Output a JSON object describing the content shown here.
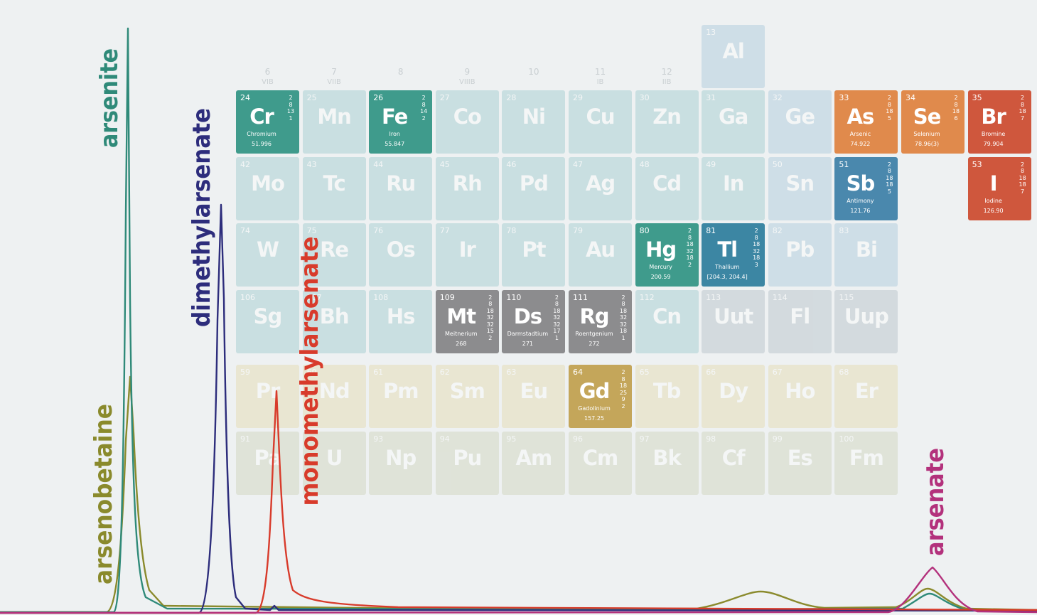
{
  "group_numbers": [
    6,
    7,
    8,
    9,
    10,
    11,
    12
  ],
  "group_romans": [
    "VIB",
    "VIIB",
    "VIIIB",
    "IB",
    "IIB"
  ],
  "tiles": [
    {
      "number": 13,
      "symbol": "Al"
    },
    {
      "number": 24,
      "symbol": "Cr",
      "name": "Chromium",
      "mass": "51.996",
      "shells": [
        2,
        8,
        13,
        1
      ]
    },
    {
      "number": 25,
      "symbol": "Mn"
    },
    {
      "number": 26,
      "symbol": "Fe",
      "name": "Iron",
      "mass": "55.847",
      "shells": [
        2,
        8,
        14,
        2
      ]
    },
    {
      "number": 27,
      "symbol": "Co"
    },
    {
      "number": 28,
      "symbol": "Ni"
    },
    {
      "number": 29,
      "symbol": "Cu"
    },
    {
      "number": 30,
      "symbol": "Zn"
    },
    {
      "number": 31,
      "symbol": "Ga"
    },
    {
      "number": 32,
      "symbol": "Ge"
    },
    {
      "number": 33,
      "symbol": "As",
      "name": "Arsenic",
      "mass": "74.922",
      "shells": [
        2,
        8,
        18,
        5
      ]
    },
    {
      "number": 34,
      "symbol": "Se",
      "name": "Selenium",
      "mass": "78.96(3)",
      "shells": [
        2,
        8,
        18,
        6
      ]
    },
    {
      "number": 35,
      "symbol": "Br",
      "name": "Bromine",
      "mass": "79.904",
      "shells": [
        2,
        8,
        18,
        7
      ]
    },
    {
      "number": 42,
      "symbol": "Mo"
    },
    {
      "number": 43,
      "symbol": "Tc"
    },
    {
      "number": 44,
      "symbol": "Ru"
    },
    {
      "number": 45,
      "symbol": "Rh"
    },
    {
      "number": 46,
      "symbol": "Pd"
    },
    {
      "number": 47,
      "symbol": "Ag"
    },
    {
      "number": 48,
      "symbol": "Cd"
    },
    {
      "number": 49,
      "symbol": "In"
    },
    {
      "number": 50,
      "symbol": "Sn"
    },
    {
      "number": 51,
      "symbol": "Sb",
      "name": "Antimony",
      "mass": "121.76",
      "shells": [
        2,
        8,
        18,
        18,
        5
      ]
    },
    {
      "number": 53,
      "symbol": "I",
      "name": "Iodine",
      "mass": "126.90",
      "shells": [
        2,
        8,
        18,
        18,
        7
      ]
    },
    {
      "number": 74,
      "symbol": "W"
    },
    {
      "number": 75,
      "symbol": "Re"
    },
    {
      "number": 76,
      "symbol": "Os"
    },
    {
      "number": 77,
      "symbol": "Ir"
    },
    {
      "number": 78,
      "symbol": "Pt"
    },
    {
      "number": 79,
      "symbol": "Au"
    },
    {
      "number": 80,
      "symbol": "Hg",
      "name": "Mercury",
      "mass": "200.59",
      "shells": [
        2,
        8,
        18,
        32,
        18,
        2
      ]
    },
    {
      "number": 81,
      "symbol": "Tl",
      "name": "Thallium",
      "mass": "[204.3, 204.4]",
      "shells": [
        2,
        8,
        18,
        32,
        18,
        3
      ]
    },
    {
      "number": 82,
      "symbol": "Pb"
    },
    {
      "number": 83,
      "symbol": "Bi"
    },
    {
      "number": 106,
      "symbol": "Sg"
    },
    {
      "number": 107,
      "symbol": "Bh"
    },
    {
      "number": 108,
      "symbol": "Hs"
    },
    {
      "number": 109,
      "symbol": "Mt",
      "name": "Meitnerium",
      "mass": "268",
      "shells": [
        2,
        8,
        18,
        32,
        32,
        15,
        2
      ]
    },
    {
      "number": 110,
      "symbol": "Ds",
      "name": "Darmstadtium",
      "mass": "271",
      "shells": [
        2,
        8,
        18,
        32,
        32,
        17,
        1
      ]
    },
    {
      "number": 111,
      "symbol": "Rg",
      "name": "Roentgenium",
      "mass": "272",
      "shells": [
        2,
        8,
        18,
        32,
        32,
        18,
        1
      ]
    },
    {
      "number": 112,
      "symbol": "Cn"
    },
    {
      "number": 113,
      "symbol": "Uut"
    },
    {
      "number": 114,
      "symbol": "Fl"
    },
    {
      "number": 115,
      "symbol": "Uup"
    },
    {
      "number": 59,
      "symbol": "Pr"
    },
    {
      "number": 60,
      "symbol": "Nd"
    },
    {
      "number": 61,
      "symbol": "Pm"
    },
    {
      "number": 62,
      "symbol": "Sm"
    },
    {
      "number": 63,
      "symbol": "Eu"
    },
    {
      "number": 64,
      "symbol": "Gd",
      "name": "Gadolinium",
      "mass": "157.25",
      "shells": [
        2,
        8,
        18,
        25,
        9,
        2
      ]
    },
    {
      "number": 65,
      "symbol": "Tb"
    },
    {
      "number": 66,
      "symbol": "Dy"
    },
    {
      "number": 67,
      "symbol": "Ho"
    },
    {
      "number": 68,
      "symbol": "Er"
    },
    {
      "number": 91,
      "symbol": "Pa"
    },
    {
      "number": 92,
      "symbol": "U"
    },
    {
      "number": 93,
      "symbol": "Np"
    },
    {
      "number": 94,
      "symbol": "Pu"
    },
    {
      "number": 95,
      "symbol": "Am"
    },
    {
      "number": 96,
      "symbol": "Cm"
    },
    {
      "number": 97,
      "symbol": "Bk"
    },
    {
      "number": 98,
      "symbol": "Cf"
    },
    {
      "number": 99,
      "symbol": "Es"
    },
    {
      "number": 100,
      "symbol": "Fm"
    }
  ],
  "peak_labels": {
    "arsenite": "arsenite",
    "dimethylarsenate": "dimethylarsenate",
    "monomethylarsenate": "monomethylarsenate",
    "arsenobetaine": "arsenobetaine",
    "arsenate": "arsenate"
  }
}
